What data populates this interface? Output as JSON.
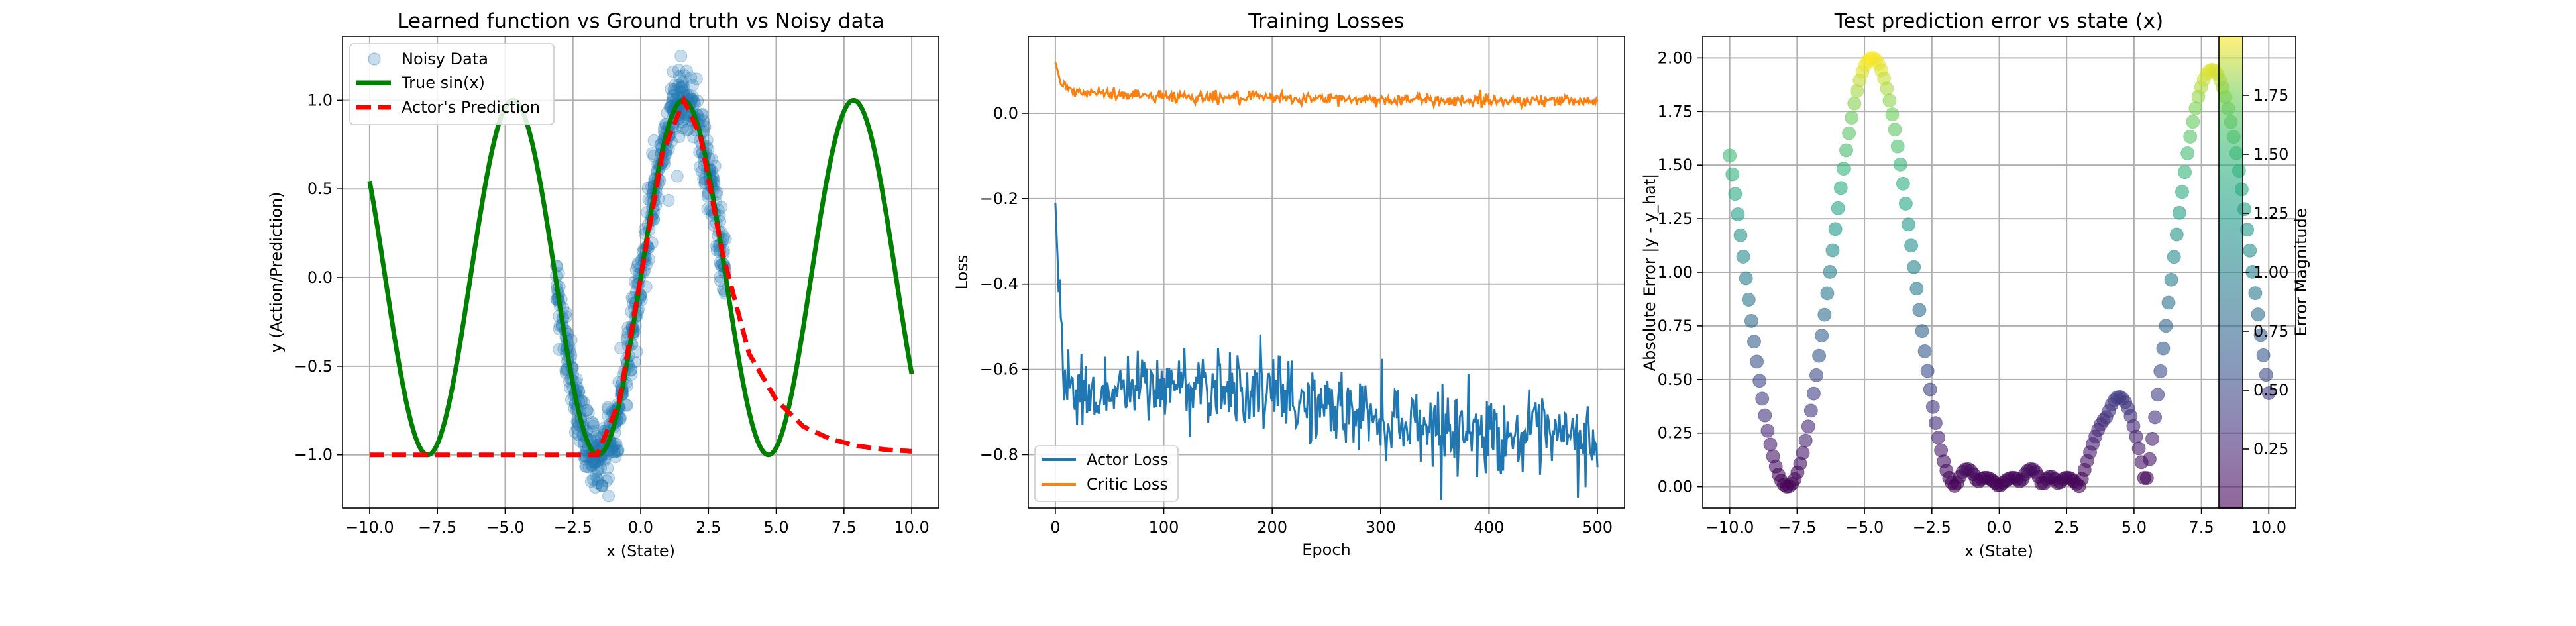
{
  "chart_data": [
    {
      "type": "scatter",
      "title": "Learned function vs Ground truth vs Noisy data",
      "xlabel": "x (State)",
      "ylabel": "y (Action/Prediction)",
      "xlim": [
        -11.0,
        11.0
      ],
      "ylim": [
        -1.3,
        1.36
      ],
      "xticks": [
        -10.0,
        -7.5,
        -5.0,
        -2.5,
        0.0,
        2.5,
        5.0,
        7.5,
        10.0
      ],
      "xtick_labels": [
        "−10.0",
        "−7.5",
        "−5.0",
        "−2.5",
        "0.0",
        "2.5",
        "5.0",
        "7.5",
        "10.0"
      ],
      "yticks": [
        -1.0,
        -0.5,
        0.0,
        0.5,
        1.0
      ],
      "ytick_labels": [
        "−1.0",
        "−0.5",
        "0.0",
        "0.5",
        "1.0"
      ],
      "grid": true,
      "legend_position": "top-left",
      "series": [
        {
          "name": "Noisy Data",
          "kind": "scatter",
          "color": "#1f77b4",
          "x_range": [
            -3.14,
            3.14
          ],
          "noise_std": 0.1,
          "count": 600
        },
        {
          "name": "True sin(x)",
          "kind": "line",
          "color": "#008000",
          "x_range": [
            -10.0,
            10.0
          ],
          "formula": "sin(x)"
        },
        {
          "name": "Actor's Prediction",
          "kind": "dashed-line",
          "color": "#ff0000",
          "x": [
            -10.0,
            -2.5,
            -1.6,
            -0.8,
            0.0,
            0.8,
            1.6,
            2.2,
            3.0,
            4.0,
            5.0,
            6.0,
            7.0,
            8.0,
            9.0,
            10.0
          ],
          "y": [
            -1.0,
            -1.0,
            -1.0,
            -0.7,
            0.0,
            0.7,
            1.0,
            0.8,
            0.15,
            -0.43,
            -0.69,
            -0.84,
            -0.91,
            -0.95,
            -0.97,
            -0.98
          ]
        }
      ]
    },
    {
      "type": "line",
      "title": "Training Losses",
      "xlabel": "Epoch",
      "ylabel": "Loss",
      "xlim": [
        -25,
        525
      ],
      "ylim": [
        -0.925,
        0.18
      ],
      "xticks": [
        0,
        100,
        200,
        300,
        400,
        500
      ],
      "xtick_labels": [
        "0",
        "100",
        "200",
        "300",
        "400",
        "500"
      ],
      "yticks": [
        -0.8,
        -0.6,
        -0.4,
        -0.2,
        0.0
      ],
      "ytick_labels": [
        "−0.8",
        "−0.6",
        "−0.4",
        "−0.2",
        "0.0"
      ],
      "grid": true,
      "legend_position": "bottom-left",
      "series": [
        {
          "name": "Actor Loss",
          "color": "#1f77b4",
          "x_range": [
            0,
            500
          ],
          "trend_x": [
            0,
            3,
            8,
            20,
            60,
            100,
            150,
            200,
            250,
            300,
            350,
            400,
            450,
            500
          ],
          "trend_y": [
            -0.21,
            -0.4,
            -0.6,
            -0.66,
            -0.65,
            -0.64,
            -0.63,
            -0.66,
            -0.69,
            -0.71,
            -0.73,
            -0.75,
            -0.76,
            -0.77
          ],
          "noise_amplitude": 0.045
        },
        {
          "name": "Critic Loss",
          "color": "#ff7f0e",
          "x_range": [
            0,
            500
          ],
          "trend_x": [
            0,
            2,
            5,
            15,
            50,
            100,
            200,
            300,
            400,
            500
          ],
          "trend_y": [
            0.12,
            0.1,
            0.07,
            0.05,
            0.045,
            0.04,
            0.035,
            0.032,
            0.03,
            0.03
          ],
          "noise_amplitude": 0.007
        }
      ]
    },
    {
      "type": "scatter",
      "title": "Test prediction error vs state (x)",
      "xlabel": "x (State)",
      "ylabel": "Absolute Error |y - y_hat|",
      "xlim": [
        -11.0,
        11.0
      ],
      "ylim": [
        -0.1,
        2.1
      ],
      "xticks": [
        -10.0,
        -7.5,
        -5.0,
        -2.5,
        0.0,
        2.5,
        5.0,
        7.5,
        10.0
      ],
      "xtick_labels": [
        "−10.0",
        "−7.5",
        "−5.0",
        "−2.5",
        "0.0",
        "2.5",
        "5.0",
        "7.5",
        "10.0"
      ],
      "yticks": [
        0.0,
        0.25,
        0.5,
        0.75,
        1.0,
        1.25,
        1.5,
        1.75,
        2.0
      ],
      "ytick_labels": [
        "0.00",
        "0.25",
        "0.50",
        "0.75",
        "1.00",
        "1.25",
        "1.50",
        "1.75",
        "2.00"
      ],
      "grid": true,
      "points": 200,
      "x_range": [
        -10.0,
        10.0
      ],
      "error_definition": "abs(sin(x) - actor_prediction(x))",
      "colormap": "viridis",
      "colorbar": {
        "label": "Error Magnitude",
        "ticks": [
          0.25,
          0.5,
          0.75,
          1.0,
          1.25,
          1.5,
          1.75
        ],
        "tick_labels": [
          "0.25",
          "0.50",
          "0.75",
          "1.00",
          "1.25",
          "1.50",
          "1.75"
        ],
        "range": [
          0.0,
          2.0
        ]
      }
    }
  ]
}
